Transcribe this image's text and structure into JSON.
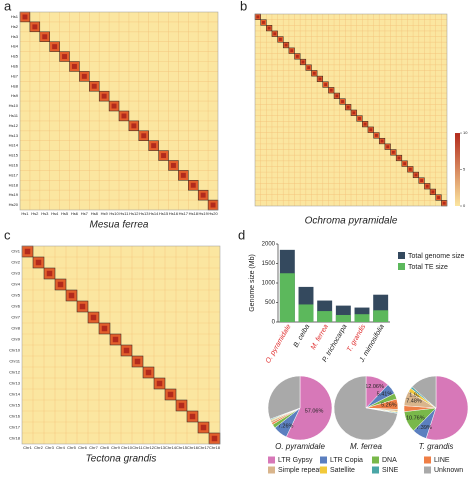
{
  "panels": [
    "a",
    "b",
    "c",
    "d"
  ],
  "chart_data": [
    {
      "type": "heatmap",
      "title": "Mesua ferrea",
      "labels": [
        "Hs1",
        "Hs2",
        "Hs3",
        "Hs4",
        "Hs5",
        "Hs6",
        "Hs7",
        "Hs8",
        "Hs9",
        "Hs10",
        "Hs11",
        "Hs12",
        "Hs13",
        "Hs14",
        "Hs15",
        "Hs16",
        "Hs17",
        "Hs18",
        "Hs19",
        "Hs20"
      ]
    },
    {
      "type": "heatmap",
      "title": "Ochroma pyramidale",
      "colorbar_ticks": [
        0,
        5,
        10
      ]
    },
    {
      "type": "heatmap",
      "title": "Tectona grandis",
      "labels": [
        "Chr1",
        "Chr2",
        "Chr3",
        "Chr4",
        "Chr5",
        "Chr6",
        "Chr7",
        "Chr8",
        "Chr9",
        "Chr10",
        "Chr11",
        "Chr12",
        "Chr13",
        "Chr14",
        "Chr15",
        "Chr16",
        "Chr17",
        "Chr18"
      ]
    },
    {
      "type": "bar",
      "ylabel": "Genome size (Mb)",
      "categories": [
        "O. pyramidale",
        "B. ceiba",
        "M. ferrea",
        "P. trichocarpa",
        "T. grandis",
        "J. mimosifolia"
      ],
      "category_colors": [
        "#e03030",
        "#222222",
        "#e03030",
        "#222222",
        "#e03030",
        "#222222"
      ],
      "series": [
        {
          "name": "Total genome size",
          "color": "#34495e",
          "values": [
            1850,
            900,
            550,
            420,
            370,
            700
          ]
        },
        {
          "name": "Total TE size",
          "color": "#5cb85c",
          "values": [
            1250,
            450,
            280,
            180,
            200,
            300
          ]
        }
      ],
      "ylim": [
        0,
        2000
      ],
      "yticks": [
        0,
        500,
        1000,
        1500,
        2000
      ]
    },
    {
      "type": "pie",
      "categories": [
        "LTR Gypsy",
        "LTR Copia",
        "DNA",
        "LINE",
        "Simple repeat",
        "Satellite",
        "SINE",
        "Unknown"
      ],
      "colors": [
        "#d778b8",
        "#5b7fbf",
        "#79b84a",
        "#ef7e45",
        "#d9b58c",
        "#f2c93a",
        "#4aa6a6",
        "#a9a9a9"
      ],
      "pies": [
        {
          "title": "O. pyramidale",
          "values": [
            57.06,
            7.26,
            2,
            1,
            1,
            0.5,
            0.5,
            30.68
          ],
          "value_labels": [
            "57.06%",
            "7.26%",
            null,
            null,
            null,
            null,
            null,
            null
          ]
        },
        {
          "title": "M. ferrea",
          "values": [
            12.06,
            5.41,
            3,
            5.26,
            1,
            0.5,
            0.5,
            72.27
          ],
          "value_labels": [
            "12.06%",
            "5.41%",
            null,
            "5.26%",
            null,
            null,
            null,
            null
          ]
        },
        {
          "title": "T. grandis",
          "values": [
            55,
            7.39,
            10.76,
            3,
            7.48,
            1.92,
            1,
            13.45
          ],
          "value_labels": [
            null,
            "7.39%",
            "10.76%",
            null,
            "7.48%",
            "1.92%",
            null,
            null
          ]
        }
      ]
    }
  ]
}
